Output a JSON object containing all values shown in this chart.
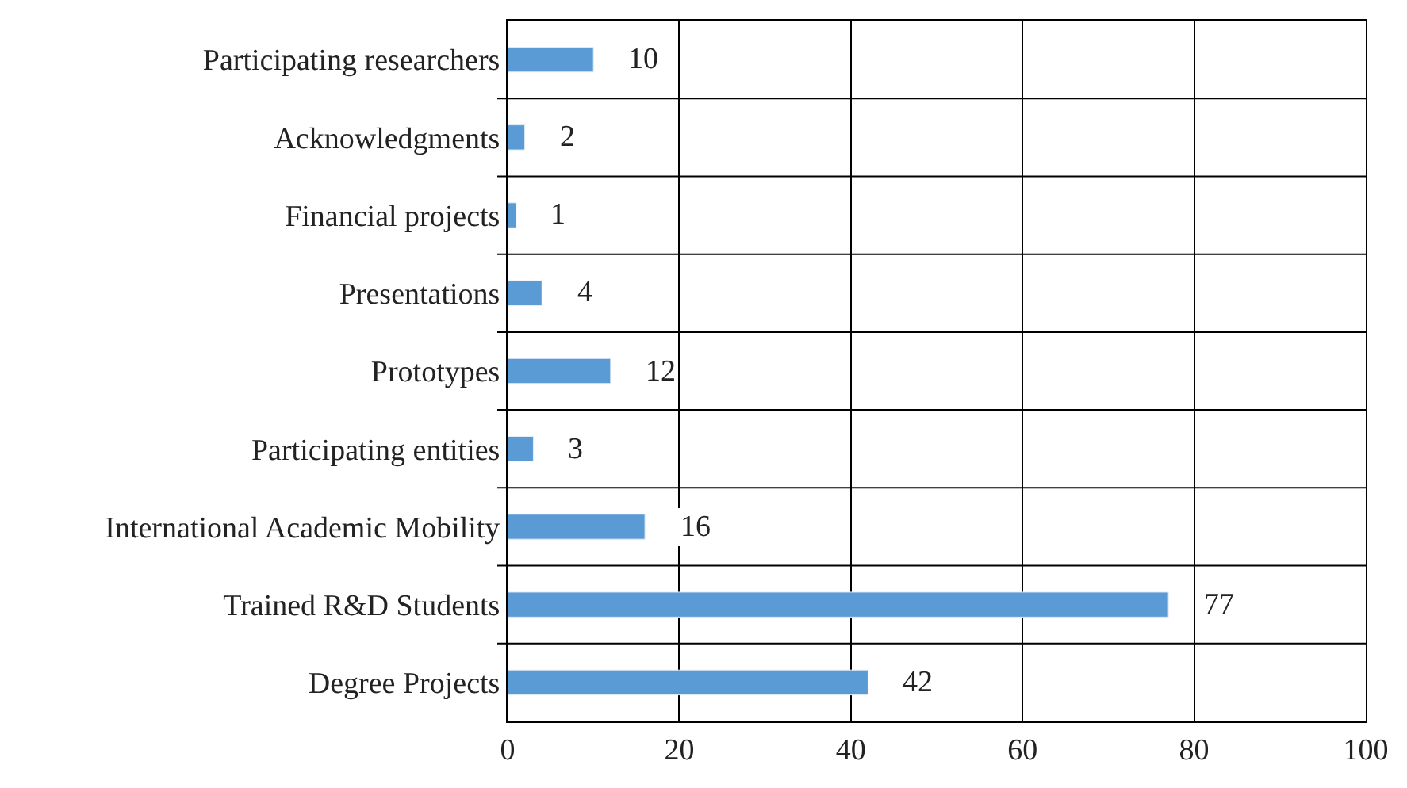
{
  "chart_data": {
    "type": "bar",
    "orientation": "horizontal",
    "categories": [
      "Participating researchers",
      "Acknowledgments",
      "Financial projects",
      "Presentations",
      "Prototypes",
      "Participating entities",
      "International Academic Mobility",
      "Trained R&D Students",
      "Degree Projects"
    ],
    "values": [
      10,
      2,
      1,
      4,
      12,
      3,
      16,
      77,
      42
    ],
    "color": "#5b9bd5",
    "xlim": [
      0,
      100
    ],
    "xticks": [
      0,
      20,
      40,
      60,
      80,
      100
    ],
    "grid": true,
    "data_labels": true,
    "legend": false
  }
}
